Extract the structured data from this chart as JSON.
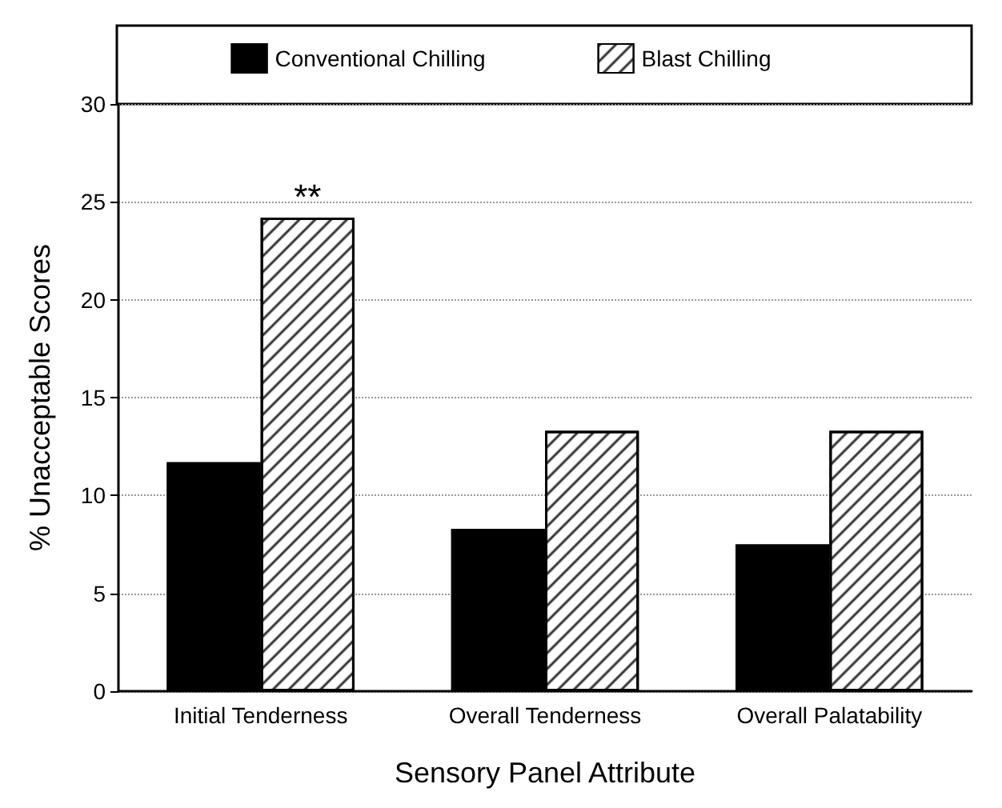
{
  "chart_data": {
    "type": "bar",
    "xlabel": "Sensory Panel Attribute",
    "ylabel": "% Unacceptable Scores",
    "categories": [
      "Initial Tenderness",
      "Overall Tenderness",
      "Overall Palatability"
    ],
    "series": [
      {
        "name": "Conventional Chilling",
        "color": "#000000",
        "values": [
          11.7,
          8.3,
          7.5
        ]
      },
      {
        "name": "Blast Chilling",
        "color": "#ffffff",
        "values": [
          24.2,
          13.3,
          13.3
        ]
      }
    ],
    "annotations": [
      {
        "text": "**",
        "x": "Initial Tenderness",
        "y": 24.2
      }
    ],
    "ylim": [
      0,
      30
    ],
    "yticks": [
      0,
      5,
      10,
      15,
      20,
      25,
      30
    ],
    "grid": "y",
    "legend": "top"
  }
}
